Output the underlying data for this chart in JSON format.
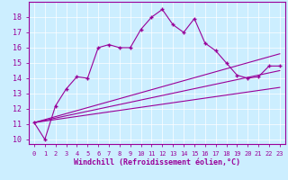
{
  "xlabel": "Windchill (Refroidissement éolien,°C)",
  "background_color": "#cceeff",
  "line_color": "#990099",
  "xlim": [
    -0.5,
    23.5
  ],
  "ylim": [
    9.7,
    19.0
  ],
  "xticks": [
    0,
    1,
    2,
    3,
    4,
    5,
    6,
    7,
    8,
    9,
    10,
    11,
    12,
    13,
    14,
    15,
    16,
    17,
    18,
    19,
    20,
    21,
    22,
    23
  ],
  "yticks": [
    10,
    11,
    12,
    13,
    14,
    15,
    16,
    17,
    18
  ],
  "main_x": [
    0,
    1,
    2,
    3,
    4,
    5,
    6,
    7,
    8,
    9,
    10,
    11,
    12,
    13,
    14,
    15,
    16,
    17,
    18,
    19,
    20,
    21,
    22,
    23
  ],
  "main_y": [
    11.1,
    10.0,
    12.2,
    13.3,
    14.1,
    14.0,
    16.0,
    16.2,
    16.0,
    16.0,
    17.2,
    18.0,
    18.5,
    17.5,
    17.0,
    17.9,
    16.3,
    15.8,
    15.0,
    14.2,
    14.0,
    14.1,
    14.8,
    14.8
  ],
  "line1_x": [
    0,
    23
  ],
  "line1_y": [
    11.1,
    15.6
  ],
  "line2_x": [
    0,
    23
  ],
  "line2_y": [
    11.1,
    14.5
  ],
  "line3_x": [
    0,
    23
  ],
  "line3_y": [
    11.1,
    13.4
  ],
  "grid_color": "#ffffff",
  "spine_color": "#990099",
  "figsize": [
    3.2,
    2.0
  ],
  "dpi": 100
}
